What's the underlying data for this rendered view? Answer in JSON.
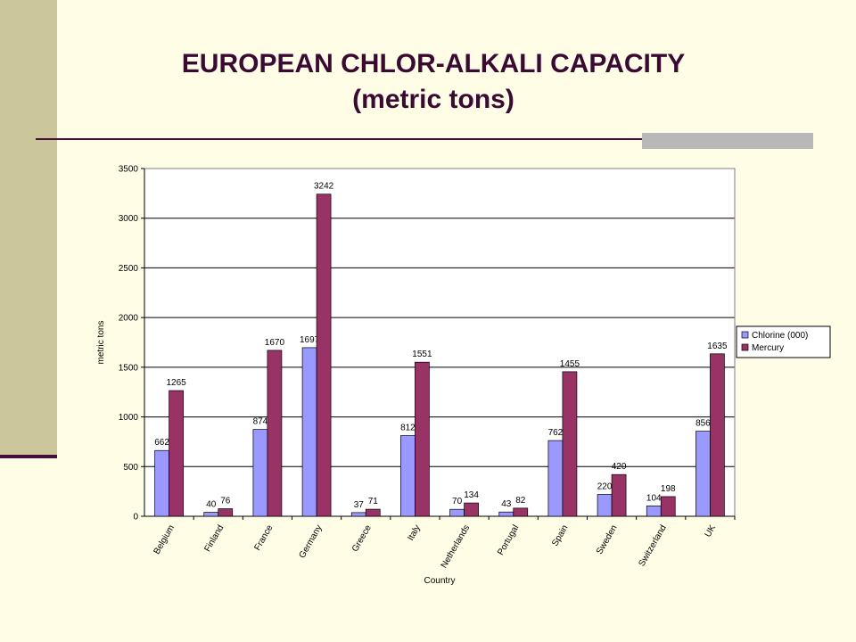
{
  "slide": {
    "title_line1": "EUROPEAN  CHLOR-ALKALI CAPACITY",
    "title_line2": "(metric tons)"
  },
  "colors": {
    "chlorine": "#9999ff",
    "mercury": "#993366",
    "title": "#3a0a33",
    "band": "#cbc79a"
  },
  "chart_data": {
    "type": "bar",
    "title": "",
    "xlabel": "Country",
    "ylabel": "metric tons",
    "ylim": [
      0,
      3500
    ],
    "yticks": [
      0,
      500,
      1000,
      1500,
      2000,
      2500,
      3000,
      3500
    ],
    "grid": true,
    "legend_position": "right",
    "categories": [
      "Belgium",
      "Finland",
      "France",
      "Germany",
      "Greece",
      "Italy",
      "Netherlands",
      "Portugal",
      "Spain",
      "Sweden",
      "Switzerland",
      "UK"
    ],
    "series": [
      {
        "name": "Chlorine (000)",
        "color": "#9999ff",
        "values": [
          662,
          40,
          874,
          1697,
          37,
          812,
          70,
          43,
          762,
          220,
          104,
          856
        ]
      },
      {
        "name": "Mercury",
        "color": "#993366",
        "values": [
          1265,
          76,
          1670,
          3242,
          71,
          1551,
          134,
          82,
          1455,
          420,
          198,
          1635
        ]
      }
    ]
  }
}
